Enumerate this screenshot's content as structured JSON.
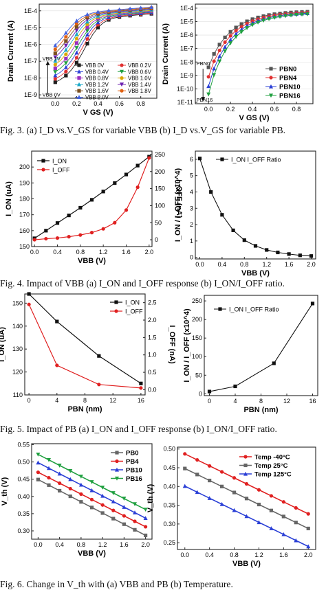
{
  "captions": [
    "Fig. 3. (a) I_D vs.V_GS for variable VBB (b) I_D vs.V_GS for variable PB.",
    "Fig. 4. Impact of VBB (a) I_ON and I_OFF response (b) I_ON/I_OFF ratio.",
    "Fig. 5. Impact of PB (a) I_ON and I_OFF response (b) I_ON/I_OFF ratio.",
    "Fig. 6. Change in V_th with (a) VBB and PB (b) Temperature."
  ],
  "chart_data": [
    {
      "id": "fig3a",
      "type": "line",
      "xlabel": "V_GS (V)",
      "ylabel": "Drain Current (A)",
      "yscale": "log",
      "xlim": [
        -0.15,
        0.95
      ],
      "ylim": [
        -9.2,
        -3.6
      ],
      "xticks": [
        "0.0",
        "0.2",
        "0.4",
        "0.6",
        "0.8"
      ],
      "yticks": [
        "1E-9",
        "1E-8",
        "1E-7",
        "1E-6",
        "1E-5",
        "1E-4"
      ],
      "annotations": [
        "VBB 2V",
        "VBB 0V"
      ],
      "legend_ncol": 2,
      "series": [
        {
          "name": "VBB 0V",
          "color": "#1f1f1f"
        },
        {
          "name": "VBB 0.2V",
          "color": "#e03030"
        },
        {
          "name": "VBB 0.4V",
          "color": "#2a3fd6"
        },
        {
          "name": "VBB 0.6V",
          "color": "#20a040"
        },
        {
          "name": "VBB 0.8V",
          "color": "#9b30c0"
        },
        {
          "name": "VBB 1.0V",
          "color": "#d9a800"
        },
        {
          "name": "VBB 1.2V",
          "color": "#18a8c8"
        },
        {
          "name": "VBB 1.4V",
          "color": "#6b1fb0"
        },
        {
          "name": "VBB 1.6V",
          "color": "#7a5020"
        },
        {
          "name": "VBB 1.8V",
          "color": "#e06010"
        },
        {
          "name": "VBB 2.0V",
          "color": "#4060e0"
        }
      ]
    },
    {
      "id": "fig3b",
      "type": "line",
      "xlabel": "V_GS (V)",
      "ylabel": "Drain Current (A)",
      "yscale": "log",
      "xlim": [
        -0.12,
        0.95
      ],
      "ylim": [
        -11.1,
        -3.7
      ],
      "xticks": [
        "0.0",
        "0.2",
        "0.4",
        "0.6",
        "0.8"
      ],
      "yticks": [
        "1E-11",
        "1E-10",
        "1E-9",
        "1E-8",
        "1E-7",
        "1E-6",
        "1E-5",
        "1E-4"
      ],
      "annotations": [
        "PBN0",
        "PBN16"
      ],
      "series": [
        {
          "name": "PBN0",
          "color": "#555555"
        },
        {
          "name": "PBN4",
          "color": "#e03030"
        },
        {
          "name": "PBN10",
          "color": "#2a3fd6"
        },
        {
          "name": "PBN16",
          "color": "#20a040"
        }
      ]
    },
    {
      "id": "fig4a",
      "type": "line",
      "xlabel": "VBB (V)",
      "ylabel": "I_ON (uA)",
      "y2label": "I_OFF (nA)",
      "xlim": [
        -0.05,
        2.05
      ],
      "ylim": [
        150,
        210
      ],
      "y2lim": [
        -20,
        260
      ],
      "xticks": [
        "0.0",
        "0.4",
        "0.8",
        "1.2",
        "1.6",
        "2.0"
      ],
      "yticks": [
        "150",
        "160",
        "170",
        "180",
        "190",
        "200"
      ],
      "y2ticks": [
        "0",
        "50",
        "100",
        "150",
        "200",
        "250"
      ],
      "x": [
        0,
        0.2,
        0.4,
        0.6,
        0.8,
        1.0,
        1.2,
        1.4,
        1.6,
        1.8,
        2.0
      ],
      "series": [
        {
          "name": "I_ON",
          "axis": "left",
          "color": "#111111",
          "values": [
            155.2,
            160.0,
            164.8,
            169.6,
            174.4,
            179.4,
            184.6,
            189.9,
            195.3,
            200.9,
            206.5
          ]
        },
        {
          "name": "I_OFF",
          "axis": "right",
          "color": "#e02020",
          "values": [
            0,
            3,
            5,
            9,
            14,
            21,
            32,
            50,
            87,
            154,
            240
          ]
        }
      ]
    },
    {
      "id": "fig4b",
      "type": "line",
      "xlabel": "VBB (V)",
      "ylabel": "I_ON / I_OFF (x10^4)",
      "xlim": [
        -0.08,
        2.08
      ],
      "ylim": [
        -0.1,
        6.5
      ],
      "xticks": [
        "0.0",
        "0.4",
        "0.8",
        "1.2",
        "1.6",
        "2.0"
      ],
      "yticks": [
        "0",
        "1",
        "2",
        "3",
        "4",
        "5",
        "6"
      ],
      "x": [
        0,
        0.2,
        0.4,
        0.6,
        0.8,
        1.0,
        1.2,
        1.4,
        1.6,
        1.8,
        2.0
      ],
      "series": [
        {
          "name": "I_ON I_OFF Ratio",
          "color": "#111111",
          "values": [
            6.05,
            4.0,
            2.6,
            1.65,
            1.05,
            0.7,
            0.45,
            0.3,
            0.2,
            0.12,
            0.08
          ]
        }
      ]
    },
    {
      "id": "fig5a",
      "type": "line",
      "xlabel": "PBN (nm)",
      "ylabel": "I_ON (uA)",
      "y2label": "I_OFF (nA)",
      "xlim": [
        -0.6,
        16.6
      ],
      "ylim": [
        110,
        154
      ],
      "y2lim": [
        -0.15,
        2.75
      ],
      "xticks": [
        "0",
        "4",
        "8",
        "12",
        "16"
      ],
      "yticks": [
        "110",
        "120",
        "130",
        "140",
        "150"
      ],
      "y2ticks": [
        "0.0",
        "0.5",
        "1.0",
        "1.5",
        "2.0",
        "2.5"
      ],
      "x": [
        0,
        4,
        10,
        16
      ],
      "series": [
        {
          "name": "I_ON",
          "axis": "left",
          "color": "#111111",
          "values": [
            154,
            142,
            127,
            115
          ]
        },
        {
          "name": "I_OFF",
          "axis": "right",
          "color": "#e02020",
          "values": [
            2.45,
            0.7,
            0.15,
            0.05
          ]
        }
      ]
    },
    {
      "id": "fig5b",
      "type": "line",
      "xlabel": "PBN (nm)",
      "ylabel": "I_ON / I_OFF (x10^4)",
      "xlim": [
        -0.8,
        16.8
      ],
      "ylim": [
        -5,
        265
      ],
      "xticks": [
        "0",
        "4",
        "8",
        "12",
        "16"
      ],
      "yticks": [
        "0",
        "50",
        "100",
        "150",
        "200",
        "250"
      ],
      "x": [
        0,
        4,
        10,
        16
      ],
      "series": [
        {
          "name": "I_ON I_OFF Ratio",
          "color": "#111111",
          "values": [
            6,
            20,
            82,
            243
          ]
        }
      ]
    },
    {
      "id": "fig6a",
      "type": "line",
      "xlabel": "VBB (V)",
      "ylabel": "V_th (V)",
      "xlim": [
        -0.12,
        2.12
      ],
      "ylim": [
        0.276,
        0.553
      ],
      "xticks": [
        "0.0",
        "0.4",
        "0.8",
        "1.2",
        "1.6",
        "2.0"
      ],
      "yticks": [
        "0.30",
        "0.35",
        "0.40",
        "0.45",
        "0.50",
        "0.55"
      ],
      "x": [
        0,
        0.2,
        0.4,
        0.6,
        0.8,
        1.0,
        1.2,
        1.4,
        1.6,
        1.8,
        2.0
      ],
      "series": [
        {
          "name": "PB0",
          "color": "#666666",
          "start": 0.449,
          "end": 0.287
        },
        {
          "name": "PB4",
          "color": "#e02020",
          "start": 0.47,
          "end": 0.312
        },
        {
          "name": "PB10",
          "color": "#2a3fd6",
          "start": 0.498,
          "end": 0.337
        },
        {
          "name": "PB16",
          "color": "#20a040",
          "start": 0.522,
          "end": 0.362
        }
      ]
    },
    {
      "id": "fig6b",
      "type": "line",
      "xlabel": "VBB (V)",
      "ylabel": "V_th (V)",
      "xlim": [
        -0.12,
        2.12
      ],
      "ylim": [
        0.232,
        0.505
      ],
      "xticks": [
        "0.0",
        "0.4",
        "0.8",
        "1.2",
        "1.6",
        "2.0"
      ],
      "yticks": [
        "0.25",
        "0.30",
        "0.35",
        "0.40",
        "0.45",
        "0.50"
      ],
      "x": [
        0,
        0.2,
        0.4,
        0.6,
        0.8,
        1.0,
        1.2,
        1.4,
        1.6,
        1.8,
        2.0
      ],
      "series": [
        {
          "name": "Temp -40°C",
          "color": "#e02020",
          "start": 0.487,
          "end": 0.327
        },
        {
          "name": "Temp 25°C",
          "color": "#666666",
          "start": 0.448,
          "end": 0.288
        },
        {
          "name": "Temp 125°C",
          "color": "#2a3fd6",
          "start": 0.401,
          "end": 0.24
        }
      ]
    }
  ]
}
